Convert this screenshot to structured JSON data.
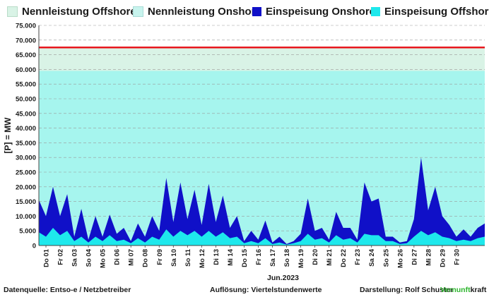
{
  "legend": [
    {
      "label": "Nennleistung Offshore",
      "color": "#d9f3e6"
    },
    {
      "label": "Nennleistung Onshore",
      "color": "#c8f4ee"
    },
    {
      "label": "Einspeisung Onshore",
      "color": "#1010c8"
    },
    {
      "label": "Einspeisung Offshore",
      "color": "#1ee8ec"
    }
  ],
  "chart_data": {
    "type": "area",
    "ylabel": "[P] = MW",
    "xlabel": "Jun.2023",
    "ylim": [
      0,
      75000
    ],
    "yticks": [
      "0",
      "5.000",
      "10.000",
      "15.000",
      "20.000",
      "25.000",
      "30.000",
      "35.000",
      "40.000",
      "45.000",
      "50.000",
      "55.000",
      "60.000",
      "65.000",
      "70.000",
      "75.000"
    ],
    "grid": true,
    "legend_position": "top",
    "categories": [
      "Do 01",
      "Fr 02",
      "Sa 03",
      "So 04",
      "Mo 05",
      "Di 06",
      "Mi 07",
      "Do 08",
      "Fr 09",
      "Sa 10",
      "So 11",
      "Mo 12",
      "Di 13",
      "Mi 14",
      "Do 15",
      "Fr 16",
      "Sa 17",
      "So 18",
      "Mo 19",
      "Di 20",
      "Mi 21",
      "Do 22",
      "Fr 23",
      "Sa 24",
      "So 25",
      "Mo 26",
      "Di 27",
      "Mi 28",
      "Do 29",
      "Fr 30"
    ],
    "nennleistung_onshore": 59500,
    "nennleistung_gesamt": 67500,
    "series": [
      {
        "name": "Einspeisung Onshore",
        "color": "#1010c8",
        "points": [
          [
            0,
            15500
          ],
          [
            0.5,
            10000
          ],
          [
            1.0,
            20000
          ],
          [
            1.5,
            10000
          ],
          [
            2.0,
            17500
          ],
          [
            2.5,
            3000
          ],
          [
            3.0,
            12500
          ],
          [
            3.5,
            2000
          ],
          [
            4.0,
            10000
          ],
          [
            4.5,
            3000
          ],
          [
            5.0,
            10500
          ],
          [
            5.5,
            4000
          ],
          [
            6.0,
            6000
          ],
          [
            6.5,
            1500
          ],
          [
            7.0,
            7500
          ],
          [
            7.5,
            3000
          ],
          [
            8.0,
            10000
          ],
          [
            8.5,
            5000
          ],
          [
            9.0,
            23000
          ],
          [
            9.5,
            8000
          ],
          [
            10.0,
            21500
          ],
          [
            10.5,
            9000
          ],
          [
            11.0,
            19000
          ],
          [
            11.5,
            7000
          ],
          [
            12.0,
            21000
          ],
          [
            12.5,
            8000
          ],
          [
            13.0,
            17000
          ],
          [
            13.5,
            6000
          ],
          [
            14.0,
            10000
          ],
          [
            14.5,
            1500
          ],
          [
            15.0,
            5000
          ],
          [
            15.5,
            2000
          ],
          [
            16.0,
            8500
          ],
          [
            16.5,
            1000
          ],
          [
            17.0,
            3000
          ],
          [
            17.5,
            500
          ],
          [
            18.0,
            1500
          ],
          [
            18.5,
            4000
          ],
          [
            19.0,
            16000
          ],
          [
            19.5,
            5000
          ],
          [
            20.0,
            6000
          ],
          [
            20.5,
            2000
          ],
          [
            21.0,
            11500
          ],
          [
            21.5,
            6000
          ],
          [
            22.0,
            6000
          ],
          [
            22.5,
            2000
          ],
          [
            23.0,
            21500
          ],
          [
            23.5,
            15000
          ],
          [
            24.0,
            16000
          ],
          [
            24.5,
            3000
          ],
          [
            25.0,
            3000
          ],
          [
            25.5,
            1000
          ],
          [
            26.0,
            1500
          ],
          [
            26.5,
            9000
          ],
          [
            27.0,
            30000
          ],
          [
            27.5,
            12000
          ],
          [
            28.0,
            20000
          ],
          [
            28.5,
            10000
          ],
          [
            29.0,
            7000
          ],
          [
            29.5,
            3000
          ],
          [
            30.0,
            5500
          ],
          [
            30.5,
            3000
          ],
          [
            31.0,
            6000
          ],
          [
            31.5,
            7500
          ]
        ]
      },
      {
        "name": "Einspeisung Offshore",
        "color": "#1ee8ec",
        "points": [
          [
            0,
            4500
          ],
          [
            0.5,
            3000
          ],
          [
            1.0,
            6000
          ],
          [
            1.5,
            3500
          ],
          [
            2.0,
            5000
          ],
          [
            2.5,
            1500
          ],
          [
            3.0,
            3000
          ],
          [
            3.5,
            1000
          ],
          [
            4.0,
            3000
          ],
          [
            4.5,
            1500
          ],
          [
            5.0,
            3500
          ],
          [
            5.5,
            1500
          ],
          [
            6.0,
            2000
          ],
          [
            6.5,
            800
          ],
          [
            7.0,
            2500
          ],
          [
            7.5,
            1000
          ],
          [
            8.0,
            3000
          ],
          [
            8.5,
            2000
          ],
          [
            9.0,
            5500
          ],
          [
            9.5,
            3000
          ],
          [
            10.0,
            5000
          ],
          [
            10.5,
            3500
          ],
          [
            11.0,
            5000
          ],
          [
            11.5,
            3000
          ],
          [
            12.0,
            5000
          ],
          [
            12.5,
            3000
          ],
          [
            13.0,
            4500
          ],
          [
            13.5,
            2500
          ],
          [
            14.0,
            3000
          ],
          [
            14.5,
            800
          ],
          [
            15.0,
            1500
          ],
          [
            15.5,
            800
          ],
          [
            16.0,
            2500
          ],
          [
            16.5,
            500
          ],
          [
            17.0,
            1000
          ],
          [
            17.5,
            300
          ],
          [
            18.0,
            800
          ],
          [
            18.5,
            1500
          ],
          [
            19.0,
            4000
          ],
          [
            19.5,
            2000
          ],
          [
            20.0,
            2500
          ],
          [
            20.5,
            1000
          ],
          [
            21.0,
            3500
          ],
          [
            21.5,
            2000
          ],
          [
            22.0,
            2500
          ],
          [
            22.5,
            1000
          ],
          [
            23.0,
            4000
          ],
          [
            23.5,
            3500
          ],
          [
            24.0,
            3500
          ],
          [
            24.5,
            1500
          ],
          [
            25.0,
            1500
          ],
          [
            25.5,
            500
          ],
          [
            26.0,
            800
          ],
          [
            26.5,
            3000
          ],
          [
            27.0,
            5000
          ],
          [
            27.5,
            3500
          ],
          [
            28.0,
            4500
          ],
          [
            28.5,
            3000
          ],
          [
            29.0,
            2500
          ],
          [
            29.5,
            1500
          ],
          [
            30.0,
            2000
          ],
          [
            30.5,
            1500
          ],
          [
            31.0,
            2500
          ],
          [
            31.5,
            3000
          ]
        ]
      }
    ]
  },
  "footer": {
    "source": "Datenquelle:  Entso-e  / Netzbetreiber",
    "resolution": "Auflösung: Viertelstundenwerte",
    "author": "Darstellung:  Rolf Schuster",
    "brand_green": "Vernunft",
    "brand_dark": "kraft"
  }
}
